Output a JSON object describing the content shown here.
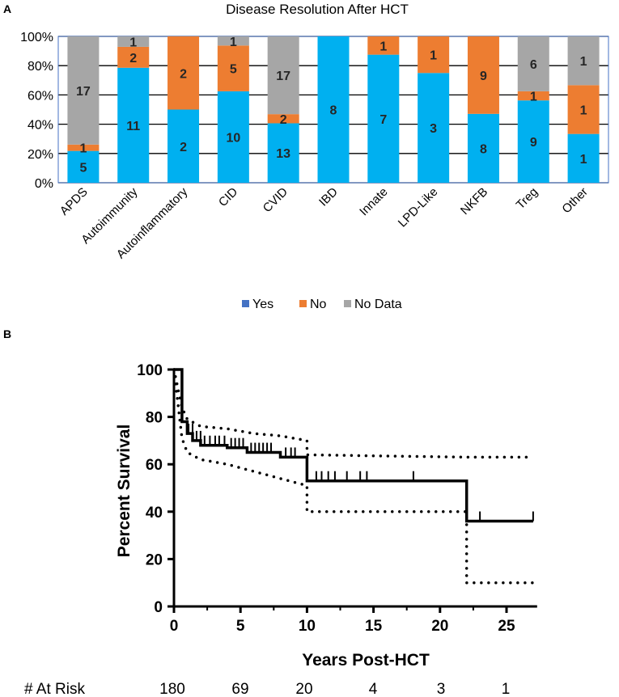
{
  "colors": {
    "yes": "#00B0F0",
    "no": "#ED7D31",
    "no_data": "#A6A6A6",
    "legend_yes": "#4472C4",
    "axis": "#000000",
    "grid": "#000000",
    "plot_border": "#4472C4"
  },
  "panels": {
    "a_label": "A",
    "b_label": "B"
  },
  "at_risk": {
    "label": "# At Risk",
    "values": [
      "180",
      "69",
      "20",
      "4",
      "3",
      "1"
    ]
  },
  "chart_data": [
    {
      "type": "bar",
      "stacked": true,
      "percent_stacked": true,
      "title": "Disease Resolution After HCT",
      "xlabel": "",
      "ylabel": "",
      "ylim": [
        0,
        100
      ],
      "yticks": [
        "0%",
        "20%",
        "40%",
        "60%",
        "80%",
        "100%"
      ],
      "grid": true,
      "legend_position": "bottom",
      "categories": [
        "APDS",
        "Autoimmunity",
        "Autoinflammatory",
        "CID",
        "CVID",
        "IBD",
        "Innate",
        "LPD-Like",
        "NKFB",
        "Treg",
        "Other"
      ],
      "series": [
        {
          "name": "Yes",
          "values": [
            5,
            11,
            2,
            10,
            13,
            8,
            7,
            3,
            8,
            9,
            1
          ]
        },
        {
          "name": "No",
          "values": [
            1,
            2,
            2,
            5,
            2,
            0,
            1,
            1,
            9,
            1,
            1
          ]
        },
        {
          "name": "No Data",
          "values": [
            17,
            1,
            0,
            1,
            17,
            0,
            0,
            0,
            0,
            6,
            1
          ]
        }
      ]
    },
    {
      "type": "line",
      "subtype": "kaplan-meier",
      "title": "",
      "xlabel": "Years Post-HCT",
      "ylabel": "Percent Survival",
      "xlim": [
        0,
        27
      ],
      "ylim": [
        0,
        100
      ],
      "xticks": [
        "0",
        "5",
        "10",
        "15",
        "20",
        "25"
      ],
      "yticks": [
        "0",
        "20",
        "40",
        "60",
        "80",
        "100"
      ],
      "series": [
        {
          "name": "Survival",
          "x": [
            0,
            0.6,
            0.6,
            1.0,
            1.0,
            1.4,
            1.4,
            2.0,
            2.0,
            4.0,
            4.0,
            5.5,
            5.5,
            8.0,
            8.0,
            10.0,
            10.0,
            22.0,
            22.0,
            27.0
          ],
          "y": [
            100,
            100,
            78,
            78,
            73,
            73,
            70,
            70,
            68,
            68,
            67,
            67,
            65,
            65,
            63,
            63,
            53,
            53,
            36,
            36
          ]
        },
        {
          "name": "Upper CI",
          "x": [
            0,
            0.6,
            1,
            2,
            4,
            6,
            8,
            10,
            10,
            22,
            27
          ],
          "y": [
            100,
            84,
            79,
            76,
            75,
            73,
            72,
            70,
            64,
            63,
            63
          ]
        },
        {
          "name": "Lower CI",
          "x": [
            0,
            0.6,
            1,
            2,
            4,
            6,
            8,
            10,
            10,
            22,
            22,
            27
          ],
          "y": [
            100,
            71,
            65,
            62,
            60,
            57,
            54,
            51,
            40,
            40,
            10,
            10
          ]
        }
      ],
      "censor_marks": [
        {
          "x": 1.1,
          "y": 73
        },
        {
          "x": 1.4,
          "y": 73
        },
        {
          "x": 1.7,
          "y": 70
        },
        {
          "x": 2.0,
          "y": 70
        },
        {
          "x": 2.3,
          "y": 68
        },
        {
          "x": 2.7,
          "y": 68
        },
        {
          "x": 3.1,
          "y": 68
        },
        {
          "x": 3.4,
          "y": 68
        },
        {
          "x": 3.8,
          "y": 68
        },
        {
          "x": 4.3,
          "y": 67
        },
        {
          "x": 4.6,
          "y": 67
        },
        {
          "x": 4.9,
          "y": 67
        },
        {
          "x": 5.2,
          "y": 67
        },
        {
          "x": 5.8,
          "y": 65
        },
        {
          "x": 6.1,
          "y": 65
        },
        {
          "x": 6.4,
          "y": 65
        },
        {
          "x": 6.7,
          "y": 65
        },
        {
          "x": 7.0,
          "y": 65
        },
        {
          "x": 7.3,
          "y": 65
        },
        {
          "x": 8.4,
          "y": 63
        },
        {
          "x": 8.8,
          "y": 63
        },
        {
          "x": 9.1,
          "y": 63
        },
        {
          "x": 10.7,
          "y": 53
        },
        {
          "x": 11.1,
          "y": 53
        },
        {
          "x": 11.6,
          "y": 53
        },
        {
          "x": 12.1,
          "y": 53
        },
        {
          "x": 13.0,
          "y": 53
        },
        {
          "x": 14.0,
          "y": 53
        },
        {
          "x": 14.5,
          "y": 53
        },
        {
          "x": 18.0,
          "y": 53
        },
        {
          "x": 23.0,
          "y": 36
        },
        {
          "x": 27.0,
          "y": 36
        }
      ]
    }
  ]
}
